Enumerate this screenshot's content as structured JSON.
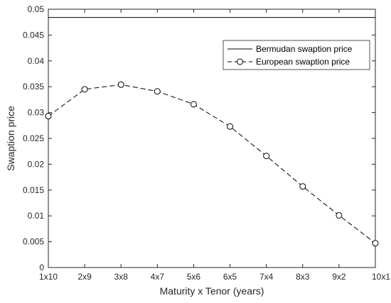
{
  "chart_data": {
    "type": "line",
    "title": "",
    "xlabel": "Maturity x Tenor (years)",
    "ylabel": "Swaption price",
    "categories": [
      "1x10",
      "2x9",
      "3x8",
      "4x7",
      "5x6",
      "6x5",
      "7x4",
      "8x3",
      "9x2",
      "10x1"
    ],
    "ylim": [
      0,
      0.05
    ],
    "yticks": [
      "0",
      "0.005",
      "0.01",
      "0.015",
      "0.02",
      "0.025",
      "0.03",
      "0.035",
      "0.04",
      "0.045",
      "0.05"
    ],
    "grid": false,
    "legend_position": "top-right",
    "series": [
      {
        "name": "Bermudan swaption price",
        "style": "solid",
        "marker": "none",
        "color": "#000000",
        "values": [
          0.0484,
          0.0484,
          0.0484,
          0.0484,
          0.0484,
          0.0484,
          0.0484,
          0.0484,
          0.0484,
          0.0484
        ]
      },
      {
        "name": "European swaption price",
        "style": "dashed",
        "marker": "circle",
        "color": "#000000",
        "values": [
          0.0293,
          0.0345,
          0.0354,
          0.0341,
          0.0316,
          0.0273,
          0.0216,
          0.0157,
          0.0101,
          0.0047
        ]
      }
    ]
  }
}
